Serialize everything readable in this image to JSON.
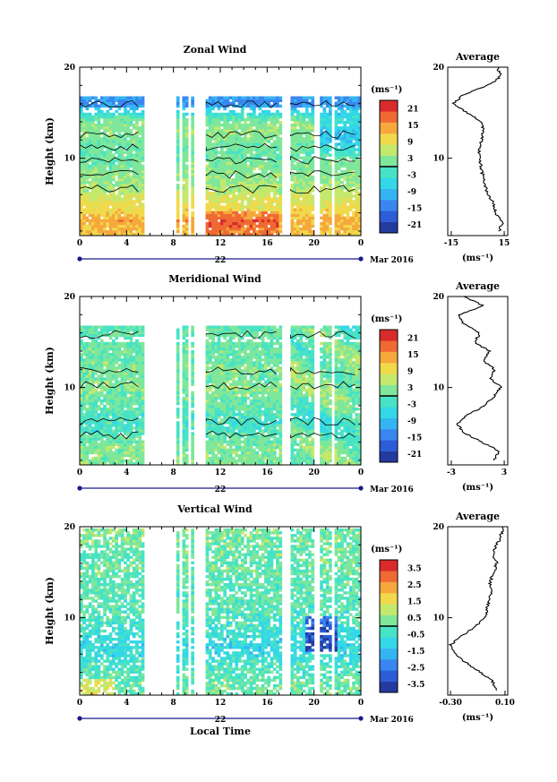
{
  "colors": {
    "scale": [
      "#233a9e",
      "#2c5cd6",
      "#3a86f0",
      "#34b4f2",
      "#33d7e8",
      "#48e3c4",
      "#7fe79a",
      "#c4e86c",
      "#f1d94c",
      "#f6a83c",
      "#ef6a33",
      "#d92b2b"
    ],
    "contour": "#000000",
    "axis": "#000000",
    "time_axis": "#1a1a8a"
  },
  "chart_data": [
    {
      "type": "heatmap",
      "title": "Zonal Wind",
      "ylabel": "Height (km)",
      "xlabel": "",
      "x_ticks": [
        "0",
        "4",
        "8",
        "12",
        "16",
        "20",
        "0"
      ],
      "y_ticks": [
        "20",
        "10"
      ],
      "xlim": [
        0,
        24
      ],
      "ylim": [
        1.5,
        20
      ],
      "date_day": "22",
      "date_label": "Mar 2016",
      "colorbar": {
        "unit": "(ms⁻¹)",
        "ticks": [
          "21",
          "15",
          "9",
          "3",
          "-3",
          "-9",
          "-15",
          "-21"
        ],
        "range": [
          -24,
          24
        ]
      },
      "profile": {
        "title": "Average",
        "x_ticks": [
          "-15",
          "15"
        ],
        "y_ticks": [
          "20",
          "10"
        ],
        "xlim": [
          -17,
          17
        ],
        "unit": "(ms⁻¹)",
        "heights": [
          2,
          3,
          4,
          5,
          6,
          7,
          8,
          9,
          10,
          11,
          12,
          13,
          14,
          15,
          16,
          17,
          18,
          19,
          20
        ],
        "values": [
          12,
          14,
          10,
          9,
          6,
          4,
          3,
          2,
          1,
          1,
          2,
          3,
          2,
          -6,
          -14,
          -8,
          6,
          13,
          11
        ]
      }
    },
    {
      "type": "heatmap",
      "title": "Meridional Wind",
      "ylabel": "Height (km)",
      "xlabel": "",
      "x_ticks": [
        "0",
        "4",
        "8",
        "12",
        "16",
        "20",
        "0"
      ],
      "y_ticks": [
        "20",
        "10"
      ],
      "xlim": [
        0,
        24
      ],
      "ylim": [
        1.5,
        20
      ],
      "date_day": "22",
      "date_label": "Mar 2016",
      "colorbar": {
        "unit": "(ms⁻¹)",
        "ticks": [
          "21",
          "15",
          "9",
          "3",
          "-3",
          "-9",
          "-15",
          "-21"
        ],
        "range": [
          -24,
          24
        ]
      },
      "profile": {
        "title": "Average",
        "x_ticks": [
          "-3",
          "3"
        ],
        "y_ticks": [
          "20",
          "10"
        ],
        "xlim": [
          -3.4,
          3.4
        ],
        "unit": "(ms⁻¹)",
        "heights": [
          2,
          3,
          4,
          5,
          6,
          7,
          8,
          9,
          10,
          11,
          12,
          13,
          14,
          15,
          16,
          17,
          18,
          19,
          20
        ],
        "values": [
          1.8,
          2.5,
          0.5,
          -1.5,
          -2.3,
          -1.2,
          0.8,
          1.8,
          2.6,
          1.5,
          1.9,
          0.6,
          1.3,
          -0.4,
          0.3,
          -1.6,
          -2.1,
          0.6,
          -1.5
        ]
      }
    },
    {
      "type": "heatmap",
      "title": "Vertical Wind",
      "ylabel": "Height (km)",
      "xlabel": "Local Time",
      "x_ticks": [
        "0",
        "4",
        "8",
        "12",
        "16",
        "20",
        "0"
      ],
      "y_ticks": [
        "20",
        "10"
      ],
      "xlim": [
        0,
        24
      ],
      "ylim": [
        1.5,
        20
      ],
      "date_day": "22",
      "date_label": "Mar 2016",
      "colorbar": {
        "unit": "(ms⁻¹)",
        "ticks": [
          "3.5",
          "2.5",
          "1.5",
          "0.5",
          "-0.5",
          "-1.5",
          "-2.5",
          "-3.5"
        ],
        "range": [
          -4,
          4
        ]
      },
      "profile": {
        "title": "Average",
        "x_ticks": [
          "-0.30",
          "0.10"
        ],
        "y_ticks": [
          "20",
          "10"
        ],
        "xlim": [
          -0.32,
          0.12
        ],
        "unit": "(ms⁻¹)",
        "heights": [
          2,
          3,
          4,
          5,
          6,
          7,
          8,
          9,
          10,
          11,
          12,
          13,
          14,
          15,
          16,
          17,
          18,
          19,
          20
        ],
        "values": [
          0.04,
          0.01,
          -0.08,
          -0.18,
          -0.27,
          -0.3,
          -0.22,
          -0.12,
          -0.05,
          -0.03,
          -0.02,
          0.0,
          -0.01,
          0.02,
          0.04,
          0.01,
          0.04,
          0.07,
          0.09
        ]
      }
    }
  ]
}
